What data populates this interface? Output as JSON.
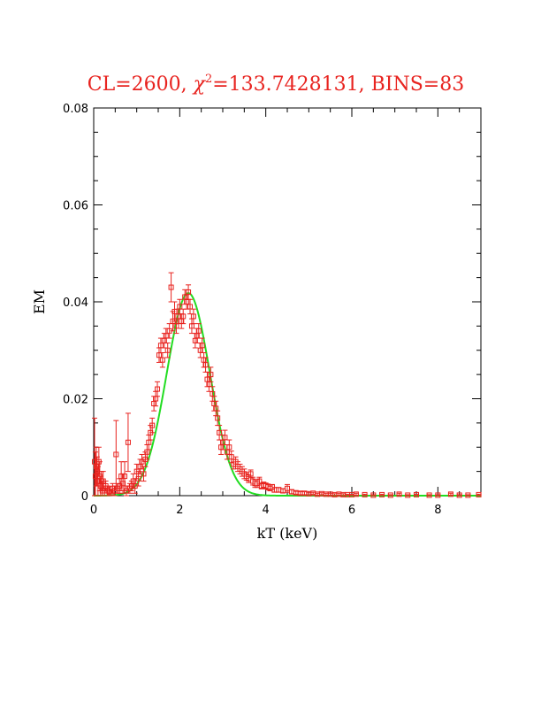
{
  "chart_data": {
    "type": "scatter",
    "title": "CL=2600, χ²=133.7428131, BINS=83",
    "title_parts": {
      "prefix": "CL=2600, ",
      "chi": "χ",
      "sup": "2",
      "suffix": "=133.7428131, BINS=83"
    },
    "xlabel": "kT (keV)",
    "ylabel": "EM",
    "xlim": [
      0,
      9
    ],
    "ylim": [
      0,
      0.08
    ],
    "x_ticks": [
      0,
      2,
      4,
      6,
      8
    ],
    "x_tick_labels": [
      "0",
      "2",
      "4",
      "6",
      "8"
    ],
    "y_ticks": [
      0,
      0.02,
      0.04,
      0.06,
      0.08
    ],
    "y_tick_labels": [
      "0",
      "0.02",
      "0.04",
      "0.06",
      "0.08"
    ],
    "grid": false,
    "colors": {
      "data": "#e8231f",
      "fit": "#22dd22",
      "axes": "#000000",
      "title": "#e8231f"
    },
    "fit_curve": {
      "name": "",
      "shape": "gaussian",
      "peak_x": 2.2,
      "peak_y": 0.0418,
      "sigma": 0.5
    },
    "series": [
      {
        "name": "",
        "marker": "open-square",
        "points": [
          [
            0.02,
            0.007,
            0.009
          ],
          [
            0.04,
            0.004,
            0.005
          ],
          [
            0.06,
            0.006,
            0.004
          ],
          [
            0.08,
            0.005,
            0.003
          ],
          [
            0.1,
            0.003,
            0.003
          ],
          [
            0.12,
            0.007,
            0.003
          ],
          [
            0.14,
            0.004,
            0.003
          ],
          [
            0.16,
            0.002,
            0.002
          ],
          [
            0.18,
            0.003,
            0.002
          ],
          [
            0.2,
            0.001,
            0.002
          ],
          [
            0.22,
            0.003,
            0.002
          ],
          [
            0.25,
            0.001,
            0.001
          ],
          [
            0.28,
            0.002,
            0.001
          ],
          [
            0.32,
            0.001,
            0.001
          ],
          [
            0.36,
            0.0008,
            0.001
          ],
          [
            0.4,
            0.0005,
            0.0008
          ],
          [
            0.44,
            0.0015,
            0.001
          ],
          [
            0.48,
            0.001,
            0.001
          ],
          [
            0.52,
            0.0085,
            0.007
          ],
          [
            0.56,
            0.0015,
            0.001
          ],
          [
            0.6,
            0.002,
            0.0015
          ],
          [
            0.64,
            0.004,
            0.003
          ],
          [
            0.68,
            0.0025,
            0.002
          ],
          [
            0.72,
            0.004,
            0.003
          ],
          [
            0.76,
            0.001,
            0.001
          ],
          [
            0.8,
            0.011,
            0.006
          ],
          [
            0.84,
            0.0015,
            0.001
          ],
          [
            0.88,
            0.002,
            0.001
          ],
          [
            0.92,
            0.003,
            0.0015
          ],
          [
            0.96,
            0.002,
            0.0015
          ],
          [
            1.0,
            0.005,
            0.0015
          ],
          [
            1.04,
            0.0035,
            0.0015
          ],
          [
            1.08,
            0.006,
            0.0015
          ],
          [
            1.12,
            0.007,
            0.0015
          ],
          [
            1.16,
            0.0045,
            0.0015
          ],
          [
            1.2,
            0.0075,
            0.0015
          ],
          [
            1.24,
            0.009,
            0.0015
          ],
          [
            1.28,
            0.011,
            0.0015
          ],
          [
            1.32,
            0.013,
            0.0015
          ],
          [
            1.36,
            0.0145,
            0.0015
          ],
          [
            1.4,
            0.019,
            0.0015
          ],
          [
            1.44,
            0.02,
            0.0015
          ],
          [
            1.48,
            0.022,
            0.0015
          ],
          [
            1.52,
            0.029,
            0.0015
          ],
          [
            1.56,
            0.031,
            0.0015
          ],
          [
            1.6,
            0.028,
            0.0015
          ],
          [
            1.64,
            0.032,
            0.0015
          ],
          [
            1.68,
            0.033,
            0.0015
          ],
          [
            1.72,
            0.03,
            0.0015
          ],
          [
            1.76,
            0.034,
            0.0015
          ],
          [
            1.8,
            0.043,
            0.003
          ],
          [
            1.84,
            0.036,
            0.002
          ],
          [
            1.88,
            0.038,
            0.002
          ],
          [
            1.92,
            0.035,
            0.0015
          ],
          [
            1.96,
            0.037,
            0.0015
          ],
          [
            2.0,
            0.039,
            0.0015
          ],
          [
            2.04,
            0.036,
            0.0015
          ],
          [
            2.08,
            0.037,
            0.0015
          ],
          [
            2.12,
            0.041,
            0.0015
          ],
          [
            2.16,
            0.04,
            0.0015
          ],
          [
            2.2,
            0.042,
            0.0015
          ],
          [
            2.24,
            0.039,
            0.0015
          ],
          [
            2.28,
            0.035,
            0.0015
          ],
          [
            2.32,
            0.037,
            0.0015
          ],
          [
            2.36,
            0.032,
            0.0015
          ],
          [
            2.4,
            0.033,
            0.0015
          ],
          [
            2.44,
            0.034,
            0.0015
          ],
          [
            2.48,
            0.03,
            0.0015
          ],
          [
            2.52,
            0.031,
            0.0015
          ],
          [
            2.56,
            0.028,
            0.0015
          ],
          [
            2.6,
            0.027,
            0.0015
          ],
          [
            2.64,
            0.024,
            0.0015
          ],
          [
            2.68,
            0.023,
            0.0015
          ],
          [
            2.72,
            0.025,
            0.0015
          ],
          [
            2.76,
            0.021,
            0.0015
          ],
          [
            2.8,
            0.019,
            0.0015
          ],
          [
            2.84,
            0.018,
            0.0015
          ],
          [
            2.88,
            0.016,
            0.0015
          ],
          [
            2.92,
            0.013,
            0.0015
          ],
          [
            2.96,
            0.01,
            0.0015
          ],
          [
            3.0,
            0.011,
            0.0015
          ],
          [
            3.05,
            0.012,
            0.0015
          ],
          [
            3.1,
            0.009,
            0.0015
          ],
          [
            3.15,
            0.01,
            0.0015
          ],
          [
            3.2,
            0.008,
            0.0012
          ],
          [
            3.25,
            0.0065,
            0.001
          ],
          [
            3.3,
            0.007,
            0.001
          ],
          [
            3.35,
            0.006,
            0.001
          ],
          [
            3.4,
            0.0055,
            0.001
          ],
          [
            3.45,
            0.005,
            0.001
          ],
          [
            3.5,
            0.0045,
            0.001
          ],
          [
            3.55,
            0.004,
            0.0008
          ],
          [
            3.6,
            0.0035,
            0.0008
          ],
          [
            3.65,
            0.0045,
            0.0008
          ],
          [
            3.7,
            0.003,
            0.0008
          ],
          [
            3.75,
            0.0025,
            0.0008
          ],
          [
            3.8,
            0.0025,
            0.0008
          ],
          [
            3.85,
            0.003,
            0.0008
          ],
          [
            3.9,
            0.002,
            0.0006
          ],
          [
            3.95,
            0.0022,
            0.0006
          ],
          [
            4.0,
            0.002,
            0.0006
          ],
          [
            4.05,
            0.0018,
            0.0006
          ],
          [
            4.1,
            0.0015,
            0.0005
          ],
          [
            4.15,
            0.0018,
            0.0005
          ],
          [
            4.2,
            0.0012,
            0.0005
          ],
          [
            4.3,
            0.0012,
            0.0005
          ],
          [
            4.4,
            0.001,
            0.0004
          ],
          [
            4.5,
            0.0015,
            0.0008
          ],
          [
            4.6,
            0.0008,
            0.0004
          ],
          [
            4.7,
            0.0006,
            0.0003
          ],
          [
            4.8,
            0.0005,
            0.0003
          ],
          [
            4.9,
            0.0005,
            0.0003
          ],
          [
            5.0,
            0.0004,
            0.0002
          ],
          [
            5.1,
            0.0005,
            0.0002
          ],
          [
            5.2,
            0.0003,
            0.0002
          ],
          [
            5.3,
            0.0004,
            0.0002
          ],
          [
            5.4,
            0.0003,
            0.0002
          ],
          [
            5.5,
            0.0003,
            0.0002
          ],
          [
            5.6,
            0.0002,
            0.0002
          ],
          [
            5.7,
            0.0003,
            0.0002
          ],
          [
            5.8,
            0.0002,
            0.0002
          ],
          [
            5.9,
            0.0002,
            0.0001
          ],
          [
            6.0,
            0.0002,
            0.0001
          ],
          [
            6.1,
            0.0003,
            0.0002
          ],
          [
            6.3,
            0.0002,
            0.0001
          ],
          [
            6.5,
            0.0001,
            0.0001
          ],
          [
            6.7,
            0.0002,
            0.0001
          ],
          [
            6.9,
            0.0001,
            0.0001
          ],
          [
            7.1,
            0.0003,
            0.0002
          ],
          [
            7.3,
            0.0001,
            0.0001
          ],
          [
            7.5,
            0.0002,
            0.0001
          ],
          [
            7.8,
            0.0001,
            0.0001
          ],
          [
            8.0,
            0.0001,
            0.0001
          ],
          [
            8.3,
            0.0003,
            0.0002
          ],
          [
            8.5,
            0.0001,
            0.0001
          ],
          [
            8.7,
            0.0001,
            0.0001
          ],
          [
            8.95,
            0.0002,
            0.0001
          ]
        ]
      }
    ]
  }
}
